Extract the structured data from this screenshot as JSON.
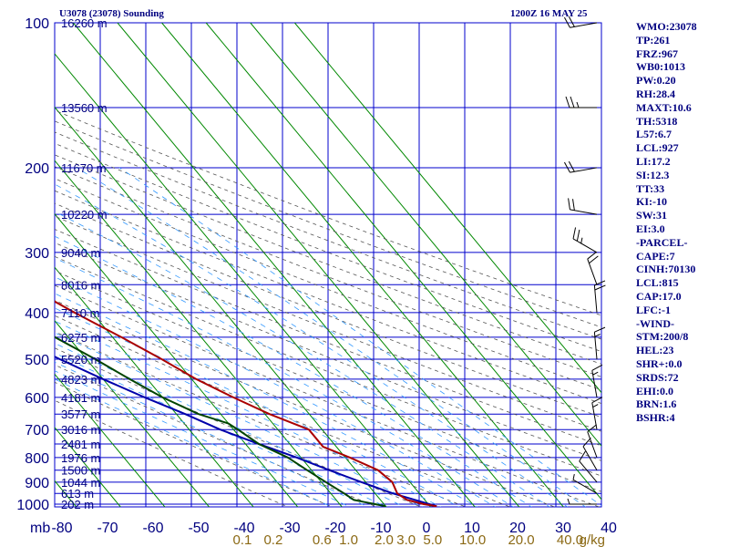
{
  "header": {
    "station": "U3078 (23078) Sounding",
    "time": "1200Z 16 MAY 25"
  },
  "stats": [
    "WMO:23078",
    "TP:261",
    "FRZ:967",
    "WB0:1013",
    "PW:0.20",
    "RH:28.4",
    "MAXT:10.6",
    "TH:5318",
    "L57:6.7",
    "LCL:927",
    "LI:17.2",
    "SI:12.3",
    "TT:33",
    "KI:-10",
    "SW:31",
    "EI:3.0",
    "-PARCEL-",
    "CAPE:7",
    "CINH:70130",
    "LCL:815",
    "CAP:17.0",
    "LFC:-1",
    "-WIND-",
    "STM:200/8",
    "HEL:23",
    "SHR+:0.0",
    "SRDS:72",
    "EHI:0.0",
    "BRN:1.6",
    "BSHR:4"
  ],
  "chart_data": {
    "type": "skew-t",
    "corner_label": "mb",
    "pressure_levels": [
      {
        "p": 100,
        "label": "100",
        "height": "16260 m"
      },
      {
        "p": 150,
        "label": "",
        "height": "13560 m"
      },
      {
        "p": 200,
        "label": "200",
        "height": "11670 m"
      },
      {
        "p": 250,
        "label": "",
        "height": "10220 m"
      },
      {
        "p": 300,
        "label": "300",
        "height": "9040 m"
      },
      {
        "p": 350,
        "label": "",
        "height": "8016 m"
      },
      {
        "p": 400,
        "label": "400",
        "height": "7110 m"
      },
      {
        "p": 450,
        "label": "",
        "height": "6275 m"
      },
      {
        "p": 500,
        "label": "500",
        "height": "5520 m"
      },
      {
        "p": 550,
        "label": "",
        "height": "4823 m"
      },
      {
        "p": 600,
        "label": "600",
        "height": "4181 m"
      },
      {
        "p": 650,
        "label": "",
        "height": "3577 m"
      },
      {
        "p": 700,
        "label": "700",
        "height": "3016 m"
      },
      {
        "p": 750,
        "label": "",
        "height": "2481 m"
      },
      {
        "p": 800,
        "label": "800",
        "height": "1976 m"
      },
      {
        "p": 850,
        "label": "",
        "height": "1500 m"
      },
      {
        "p": 900,
        "label": "900",
        "height": "1044 m"
      },
      {
        "p": 950,
        "label": "",
        "height": "613 m"
      },
      {
        "p": 1000,
        "label": "1000",
        "height": "202 m"
      }
    ],
    "temperature_ticks": [
      "-80",
      "-70",
      "-60",
      "-50",
      "-40",
      "-30",
      "-20",
      "-10",
      "0",
      "10",
      "20",
      "30",
      "40"
    ],
    "mixing_ratio_labels": [
      {
        "label": "0.1",
        "t": -42
      },
      {
        "label": "0.2",
        "t": -35
      },
      {
        "label": "0.6",
        "t": -24
      },
      {
        "label": "1.0",
        "t": -18
      },
      {
        "label": "2.0",
        "t": -10
      },
      {
        "label": "3.0",
        "t": -5
      },
      {
        "label": "5.0",
        "t": 1
      },
      {
        "label": "10.0",
        "t": 10
      },
      {
        "label": "20.0",
        "t": 21
      },
      {
        "label": "40.0",
        "t": 32
      },
      {
        "label": "g/kg",
        "t": 37
      }
    ],
    "temperature_profile": [
      [
        1010,
        1.5
      ],
      [
        1000,
        -1
      ],
      [
        980,
        -4
      ],
      [
        950,
        -5
      ],
      [
        900,
        -4
      ],
      [
        850,
        -5
      ],
      [
        800,
        -9
      ],
      [
        760,
        -13
      ],
      [
        720,
        -13
      ],
      [
        700,
        -13
      ],
      [
        650,
        -19
      ],
      [
        600,
        -24
      ],
      [
        550,
        -29
      ],
      [
        500,
        -33
      ],
      [
        450,
        -38
      ],
      [
        400,
        -44
      ],
      [
        350,
        -50
      ],
      [
        300,
        -55
      ],
      [
        290,
        -55
      ],
      [
        270,
        -55
      ],
      [
        260,
        -55
      ],
      [
        250,
        -55
      ],
      [
        230,
        -54
      ],
      [
        210,
        -52
      ],
      [
        200,
        -51
      ],
      [
        180,
        -51
      ],
      [
        160,
        -52
      ],
      [
        140,
        -53
      ],
      [
        120,
        -52
      ],
      [
        110,
        -51
      ],
      [
        105,
        -51
      ],
      [
        100,
        -51
      ]
    ],
    "dewpoint_profile": [
      [
        1010,
        -10
      ],
      [
        1000,
        -12
      ],
      [
        990,
        -14
      ],
      [
        980,
        -16
      ],
      [
        950,
        -17
      ],
      [
        900,
        -19
      ],
      [
        850,
        -21
      ],
      [
        800,
        -23
      ],
      [
        750,
        -27
      ],
      [
        700,
        -29
      ],
      [
        680,
        -30
      ],
      [
        650,
        -35
      ],
      [
        600,
        -40
      ],
      [
        550,
        -44
      ],
      [
        500,
        -48
      ],
      [
        450,
        -53
      ],
      [
        420,
        -63
      ],
      [
        400,
        -67
      ],
      [
        350,
        -76
      ],
      [
        300,
        -80
      ],
      [
        250,
        -82
      ],
      [
        200,
        -82
      ],
      [
        150,
        -82
      ],
      [
        100,
        -82
      ]
    ],
    "parcel_profile": [
      [
        1010,
        1.5
      ],
      [
        950,
        -6
      ],
      [
        900,
        -11
      ],
      [
        850,
        -16
      ],
      [
        800,
        -21
      ],
      [
        750,
        -27
      ],
      [
        700,
        -33
      ],
      [
        650,
        -38
      ],
      [
        600,
        -44
      ],
      [
        550,
        -50
      ],
      [
        500,
        -56
      ],
      [
        450,
        -62
      ],
      [
        400,
        -68
      ],
      [
        350,
        -74
      ],
      [
        300,
        -81
      ],
      [
        270,
        -86
      ]
    ],
    "wind_barbs": [
      {
        "p": 1000,
        "dir": 270,
        "speed": 5
      },
      {
        "p": 950,
        "dir": 300,
        "speed": 5
      },
      {
        "p": 900,
        "dir": 320,
        "speed": 10
      },
      {
        "p": 850,
        "dir": 330,
        "speed": 10
      },
      {
        "p": 800,
        "dir": 340,
        "speed": 10
      },
      {
        "p": 700,
        "dir": 350,
        "speed": 15
      },
      {
        "p": 600,
        "dir": 350,
        "speed": 15
      },
      {
        "p": 500,
        "dir": 355,
        "speed": 15
      },
      {
        "p": 400,
        "dir": 355,
        "speed": 20
      },
      {
        "p": 350,
        "dir": 340,
        "speed": 20
      },
      {
        "p": 300,
        "dir": 300,
        "speed": 25
      },
      {
        "p": 250,
        "dir": 280,
        "speed": 20
      },
      {
        "p": 200,
        "dir": 260,
        "speed": 20
      },
      {
        "p": 150,
        "dir": 270,
        "speed": 25
      },
      {
        "p": 100,
        "dir": 260,
        "speed": 20
      }
    ],
    "colors": {
      "grid": "#0000cc",
      "isotherm": "#008800",
      "dry_adiabat": "#555555",
      "moist_adiabat": "#3399ff",
      "temperature": "#aa0000",
      "dewpoint": "#004400",
      "parcel": "#0000aa",
      "wind": "#000000"
    }
  }
}
